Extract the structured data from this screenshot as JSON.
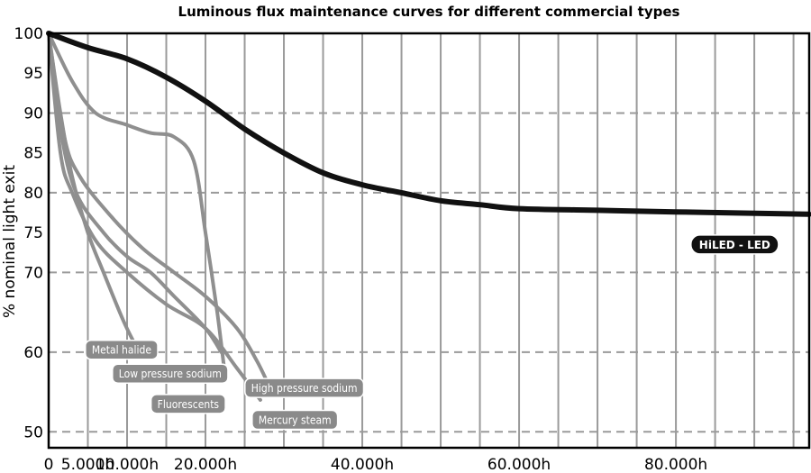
{
  "chart_data": {
    "type": "line",
    "title": "Luminous flux maintenance curves for different commercial types",
    "ylabel": "% nominal light exit",
    "xlabel": "",
    "xlim": [
      0,
      97000
    ],
    "ylim": [
      48,
      100
    ],
    "x_ticks": [
      {
        "value": 0,
        "label": "0"
      },
      {
        "value": 5000,
        "label": "5.000h"
      },
      {
        "value": 10000,
        "label": "10.000h"
      },
      {
        "value": 20000,
        "label": "20.000h"
      },
      {
        "value": 40000,
        "label": "40.000h"
      },
      {
        "value": 60000,
        "label": "60.000h"
      },
      {
        "value": 80000,
        "label": "80.000h"
      }
    ],
    "x_gridlines": [
      5000,
      10000,
      15000,
      20000,
      25000,
      30000,
      35000,
      40000,
      45000,
      50000,
      55000,
      60000,
      65000,
      70000,
      75000,
      80000,
      85000,
      90000,
      95000
    ],
    "y_ticks": [
      {
        "value": 100,
        "label": "100"
      },
      {
        "value": 95,
        "label": "95"
      },
      {
        "value": 90,
        "label": "90"
      },
      {
        "value": 85,
        "label": "85"
      },
      {
        "value": 80,
        "label": "80"
      },
      {
        "value": 75,
        "label": "75"
      },
      {
        "value": 70,
        "label": "70"
      },
      {
        "value": 60,
        "label": "60"
      },
      {
        "value": 50,
        "label": "50"
      }
    ],
    "y_gridlines_dashed": [
      90,
      80,
      70,
      60,
      50
    ],
    "series": [
      {
        "name": "HiLED - LED",
        "color": "#111111",
        "points": [
          [
            0,
            100
          ],
          [
            5000,
            98.2
          ],
          [
            10000,
            96.8
          ],
          [
            15000,
            94.5
          ],
          [
            20000,
            91.5
          ],
          [
            25000,
            88
          ],
          [
            30000,
            85
          ],
          [
            35000,
            82.5
          ],
          [
            40000,
            81
          ],
          [
            45000,
            80
          ],
          [
            50000,
            79
          ],
          [
            55000,
            78.5
          ],
          [
            60000,
            78
          ],
          [
            70000,
            77.8
          ],
          [
            80000,
            77.6
          ],
          [
            97000,
            77.3
          ]
        ]
      },
      {
        "name": "Fluorescents",
        "color": "#8f8f8f",
        "points": [
          [
            0,
            100
          ],
          [
            3000,
            94
          ],
          [
            6000,
            90
          ],
          [
            10000,
            88.5
          ],
          [
            13000,
            87.5
          ],
          [
            16000,
            87
          ],
          [
            18500,
            84
          ],
          [
            20000,
            75
          ],
          [
            21500,
            65
          ],
          [
            22500,
            57
          ]
        ]
      },
      {
        "name": "Metal halide",
        "color": "#8f8f8f",
        "points": [
          [
            0,
            100
          ],
          [
            1500,
            90
          ],
          [
            3000,
            82
          ],
          [
            5000,
            75
          ],
          [
            7000,
            70
          ],
          [
            9500,
            64
          ],
          [
            11000,
            61
          ]
        ]
      },
      {
        "name": "Low pressure sodium",
        "color": "#8f8f8f",
        "points": [
          [
            0,
            100
          ],
          [
            1500,
            88
          ],
          [
            3500,
            80
          ],
          [
            7000,
            75
          ],
          [
            10000,
            72
          ],
          [
            13000,
            70
          ],
          [
            16000,
            67
          ],
          [
            20000,
            63
          ],
          [
            22000,
            60
          ]
        ]
      },
      {
        "name": "High pressure sodium",
        "color": "#8f8f8f",
        "points": [
          [
            0,
            100
          ],
          [
            2000,
            87
          ],
          [
            4000,
            82
          ],
          [
            8000,
            77
          ],
          [
            12000,
            73
          ],
          [
            16000,
            70
          ],
          [
            20000,
            67
          ],
          [
            24000,
            63
          ],
          [
            26500,
            59
          ],
          [
            28000,
            56
          ]
        ]
      },
      {
        "name": "Mercury steam",
        "color": "#8f8f8f",
        "points": [
          [
            0,
            100
          ],
          [
            1500,
            85
          ],
          [
            3000,
            80
          ],
          [
            6000,
            74
          ],
          [
            10000,
            70
          ],
          [
            15000,
            66
          ],
          [
            20000,
            63
          ],
          [
            24000,
            58
          ],
          [
            27000,
            54
          ]
        ]
      }
    ],
    "labels": [
      {
        "text": "HiLED - LED",
        "x": 87500,
        "y": 73.5,
        "style": "dark"
      },
      {
        "text": "Metal halide",
        "x": 9300,
        "y": 60.3,
        "style": "gray"
      },
      {
        "text": "Low pressure sodium",
        "x": 15500,
        "y": 57.3,
        "style": "gray"
      },
      {
        "text": "Fluorescents",
        "x": 17800,
        "y": 53.5,
        "style": "gray"
      },
      {
        "text": "High pressure sodium",
        "x": 32600,
        "y": 55.5,
        "style": "gray"
      },
      {
        "text": "Mercury steam",
        "x": 31400,
        "y": 51.5,
        "style": "gray"
      }
    ]
  }
}
